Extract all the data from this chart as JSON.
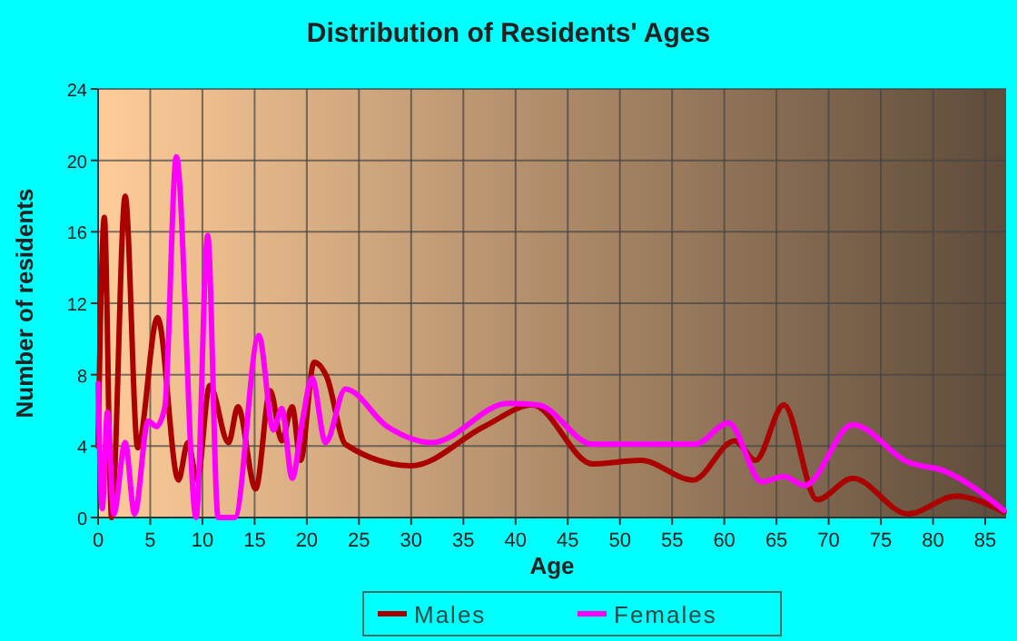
{
  "chart_data": {
    "type": "line",
    "title": "Distribution of Residents' Ages",
    "xlabel": "Age",
    "ylabel": "Number of residents",
    "xlim": [
      0,
      87
    ],
    "xticks": [
      0,
      5,
      10,
      15,
      20,
      25,
      30,
      35,
      40,
      45,
      50,
      55,
      60,
      65,
      70,
      75,
      80,
      85
    ],
    "ylim": [
      0,
      24
    ],
    "yticks": [
      0,
      4,
      8,
      12,
      16,
      20,
      24
    ],
    "grid": true,
    "legend": "bottom",
    "marker": "none",
    "line_style": "solid",
    "series": [
      {
        "name": "Males",
        "color": "#aa0000",
        "x": [
          0,
          0.6,
          1.3,
          2.6,
          3.8,
          5.7,
          7.7,
          8.6,
          9.5,
          10.7,
          12.5,
          13.4,
          15.1,
          16.5,
          17.6,
          18.6,
          19.4,
          20.7,
          21.9,
          23.7,
          30,
          37,
          41.6,
          47.4,
          52,
          57,
          61,
          63,
          65.7,
          68.9,
          72.3,
          77.6,
          82.2,
          86.8
        ],
        "values": [
          4,
          16.8,
          0,
          18,
          3.9,
          11.2,
          2.1,
          4.2,
          2.1,
          7.4,
          4.2,
          6.2,
          1.6,
          7.1,
          4.3,
          6.2,
          3.2,
          8.7,
          7.9,
          4.1,
          2.9,
          5.1,
          6.3,
          3,
          3.2,
          2.1,
          4.3,
          3.2,
          6.3,
          1,
          2.2,
          0.2,
          1.2,
          0.3
        ]
      },
      {
        "name": "Females",
        "color": "#ff00ff",
        "x": [
          0,
          0.4,
          0.9,
          1.5,
          2.6,
          3.5,
          4.8,
          5.6,
          6.4,
          7.5,
          9.4,
          10.5,
          11.5,
          13.1,
          15.4,
          16.8,
          17.6,
          18.6,
          19.6,
          20.5,
          21.8,
          23.7,
          27.7,
          32,
          39.3,
          42.2,
          47.4,
          53.7,
          57.2,
          60.4,
          63.6,
          65.7,
          67.7,
          72.3,
          77.6,
          81.1,
          86.8
        ],
        "values": [
          7.5,
          0.5,
          5.9,
          0.2,
          4.2,
          0.2,
          5.4,
          5.1,
          6.2,
          20.2,
          0,
          15.8,
          0,
          0,
          10.2,
          4.9,
          6.1,
          2.2,
          5.5,
          7.8,
          4.2,
          7.2,
          5.1,
          4.2,
          6.4,
          6.3,
          4.1,
          4.1,
          4.1,
          5.3,
          2,
          2.3,
          1.8,
          5.2,
          3.1,
          2.6,
          0.4
        ]
      }
    ]
  }
}
